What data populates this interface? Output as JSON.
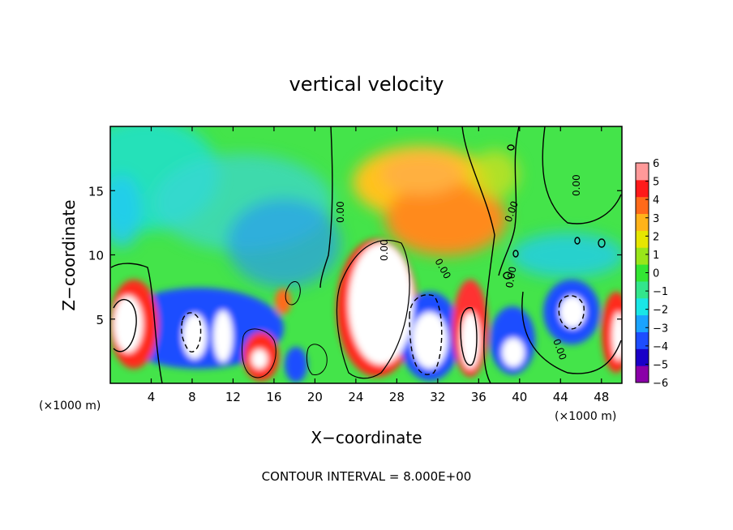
{
  "chart_data": {
    "type": "heatmap",
    "title": "vertical velocity",
    "xlabel": "X−coordinate",
    "ylabel": "Z−coordinate",
    "x_unit": "(×1000 m)",
    "xlim": [
      0,
      50
    ],
    "ylim": [
      0,
      20
    ],
    "x_ticks": [
      4,
      8,
      12,
      16,
      20,
      24,
      28,
      32,
      36,
      40,
      44,
      48
    ],
    "y_ticks": [
      5,
      10,
      15
    ],
    "colorbar_ticks": [
      6,
      5,
      4,
      3,
      2,
      1,
      0,
      -1,
      -2,
      -3,
      -4,
      -5,
      -6
    ],
    "colorbar_range": [
      -6,
      6
    ],
    "colorbar_colors": [
      "#8a00a8",
      "#1a00c8",
      "#1d4dff",
      "#1aa3ff",
      "#19e6e6",
      "#33e68c",
      "#33e633",
      "#99e61a",
      "#e6e600",
      "#ffb31a",
      "#ff6a1a",
      "#ff1a1a",
      "#ff9999"
    ],
    "contour_labels": [
      "0.00",
      "0.00",
      "0.00",
      "0.00",
      "0.00",
      "0.00",
      "0.00"
    ],
    "contour_interval": "CONTOUR INTERVAL = 8.000E+00",
    "grid": false,
    "legend": "right"
  }
}
